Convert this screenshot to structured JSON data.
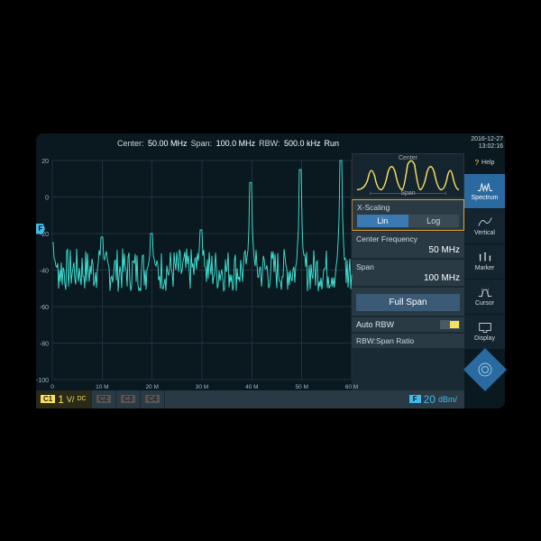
{
  "topbar": {
    "center_label": "Center:",
    "center_value": "50.00 MHz",
    "span_label": "Span:",
    "span_value": "100.0 MHz",
    "rbw_label": "RBW:",
    "rbw_value": "500.0 kHz",
    "run_label": "Run",
    "date": "2016-12-27",
    "time": "13:02:16"
  },
  "tabs": {
    "help": "Help",
    "spectrum": "Spectrum",
    "vertical": "Vertical",
    "marker": "Marker",
    "cursor": "Cursor",
    "display": "Display"
  },
  "preview": {
    "top": "Center",
    "bottom": "Span"
  },
  "panel": {
    "xscaling_title": "X-Scaling",
    "lin": "Lin",
    "log": "Log",
    "cf_title": "Center Frequency",
    "cf_value": "50 MHz",
    "span_title": "Span",
    "span_value": "100 MHz",
    "fullspan": "Full Span",
    "auto_rbw": "Auto RBW",
    "rbw_ratio": "RBW:Span Ratio"
  },
  "bottom": {
    "c1": "C1",
    "c1_val": "1",
    "c1_unit": "V/",
    "c1_cpl": "DC",
    "c2": "C2",
    "c3": "C3",
    "c4": "C4",
    "f": "F",
    "f_val": "20",
    "f_unit": "dBm/"
  },
  "graph": {
    "background": "#0a1820",
    "grid_color": "#2a3a45",
    "trace_color": "#40e8d8",
    "y_axis": {
      "min": -100,
      "max": 20,
      "step": 20,
      "labels": [
        "20",
        "0",
        "-20",
        "-40",
        "-60",
        "-80",
        "-100"
      ]
    },
    "x_axis": {
      "labels": [
        "0",
        "10 M",
        "20 M",
        "30 M",
        "40 M",
        "50 M",
        "60 M"
      ]
    },
    "peaks_x": [
      0,
      55,
      110,
      165,
      220,
      275,
      320
    ],
    "peaks_y": [
      15,
      18,
      20,
      22,
      48,
      55,
      60
    ],
    "noise_floor": -40
  },
  "colors": {
    "accent_blue": "#2a6aa0",
    "accent_cyan": "#44b8e8",
    "accent_yellow": "#f8e060",
    "accent_orange": "#e8a030",
    "panel_bg": "#2a3a45",
    "dark_bg": "#0a1820"
  }
}
